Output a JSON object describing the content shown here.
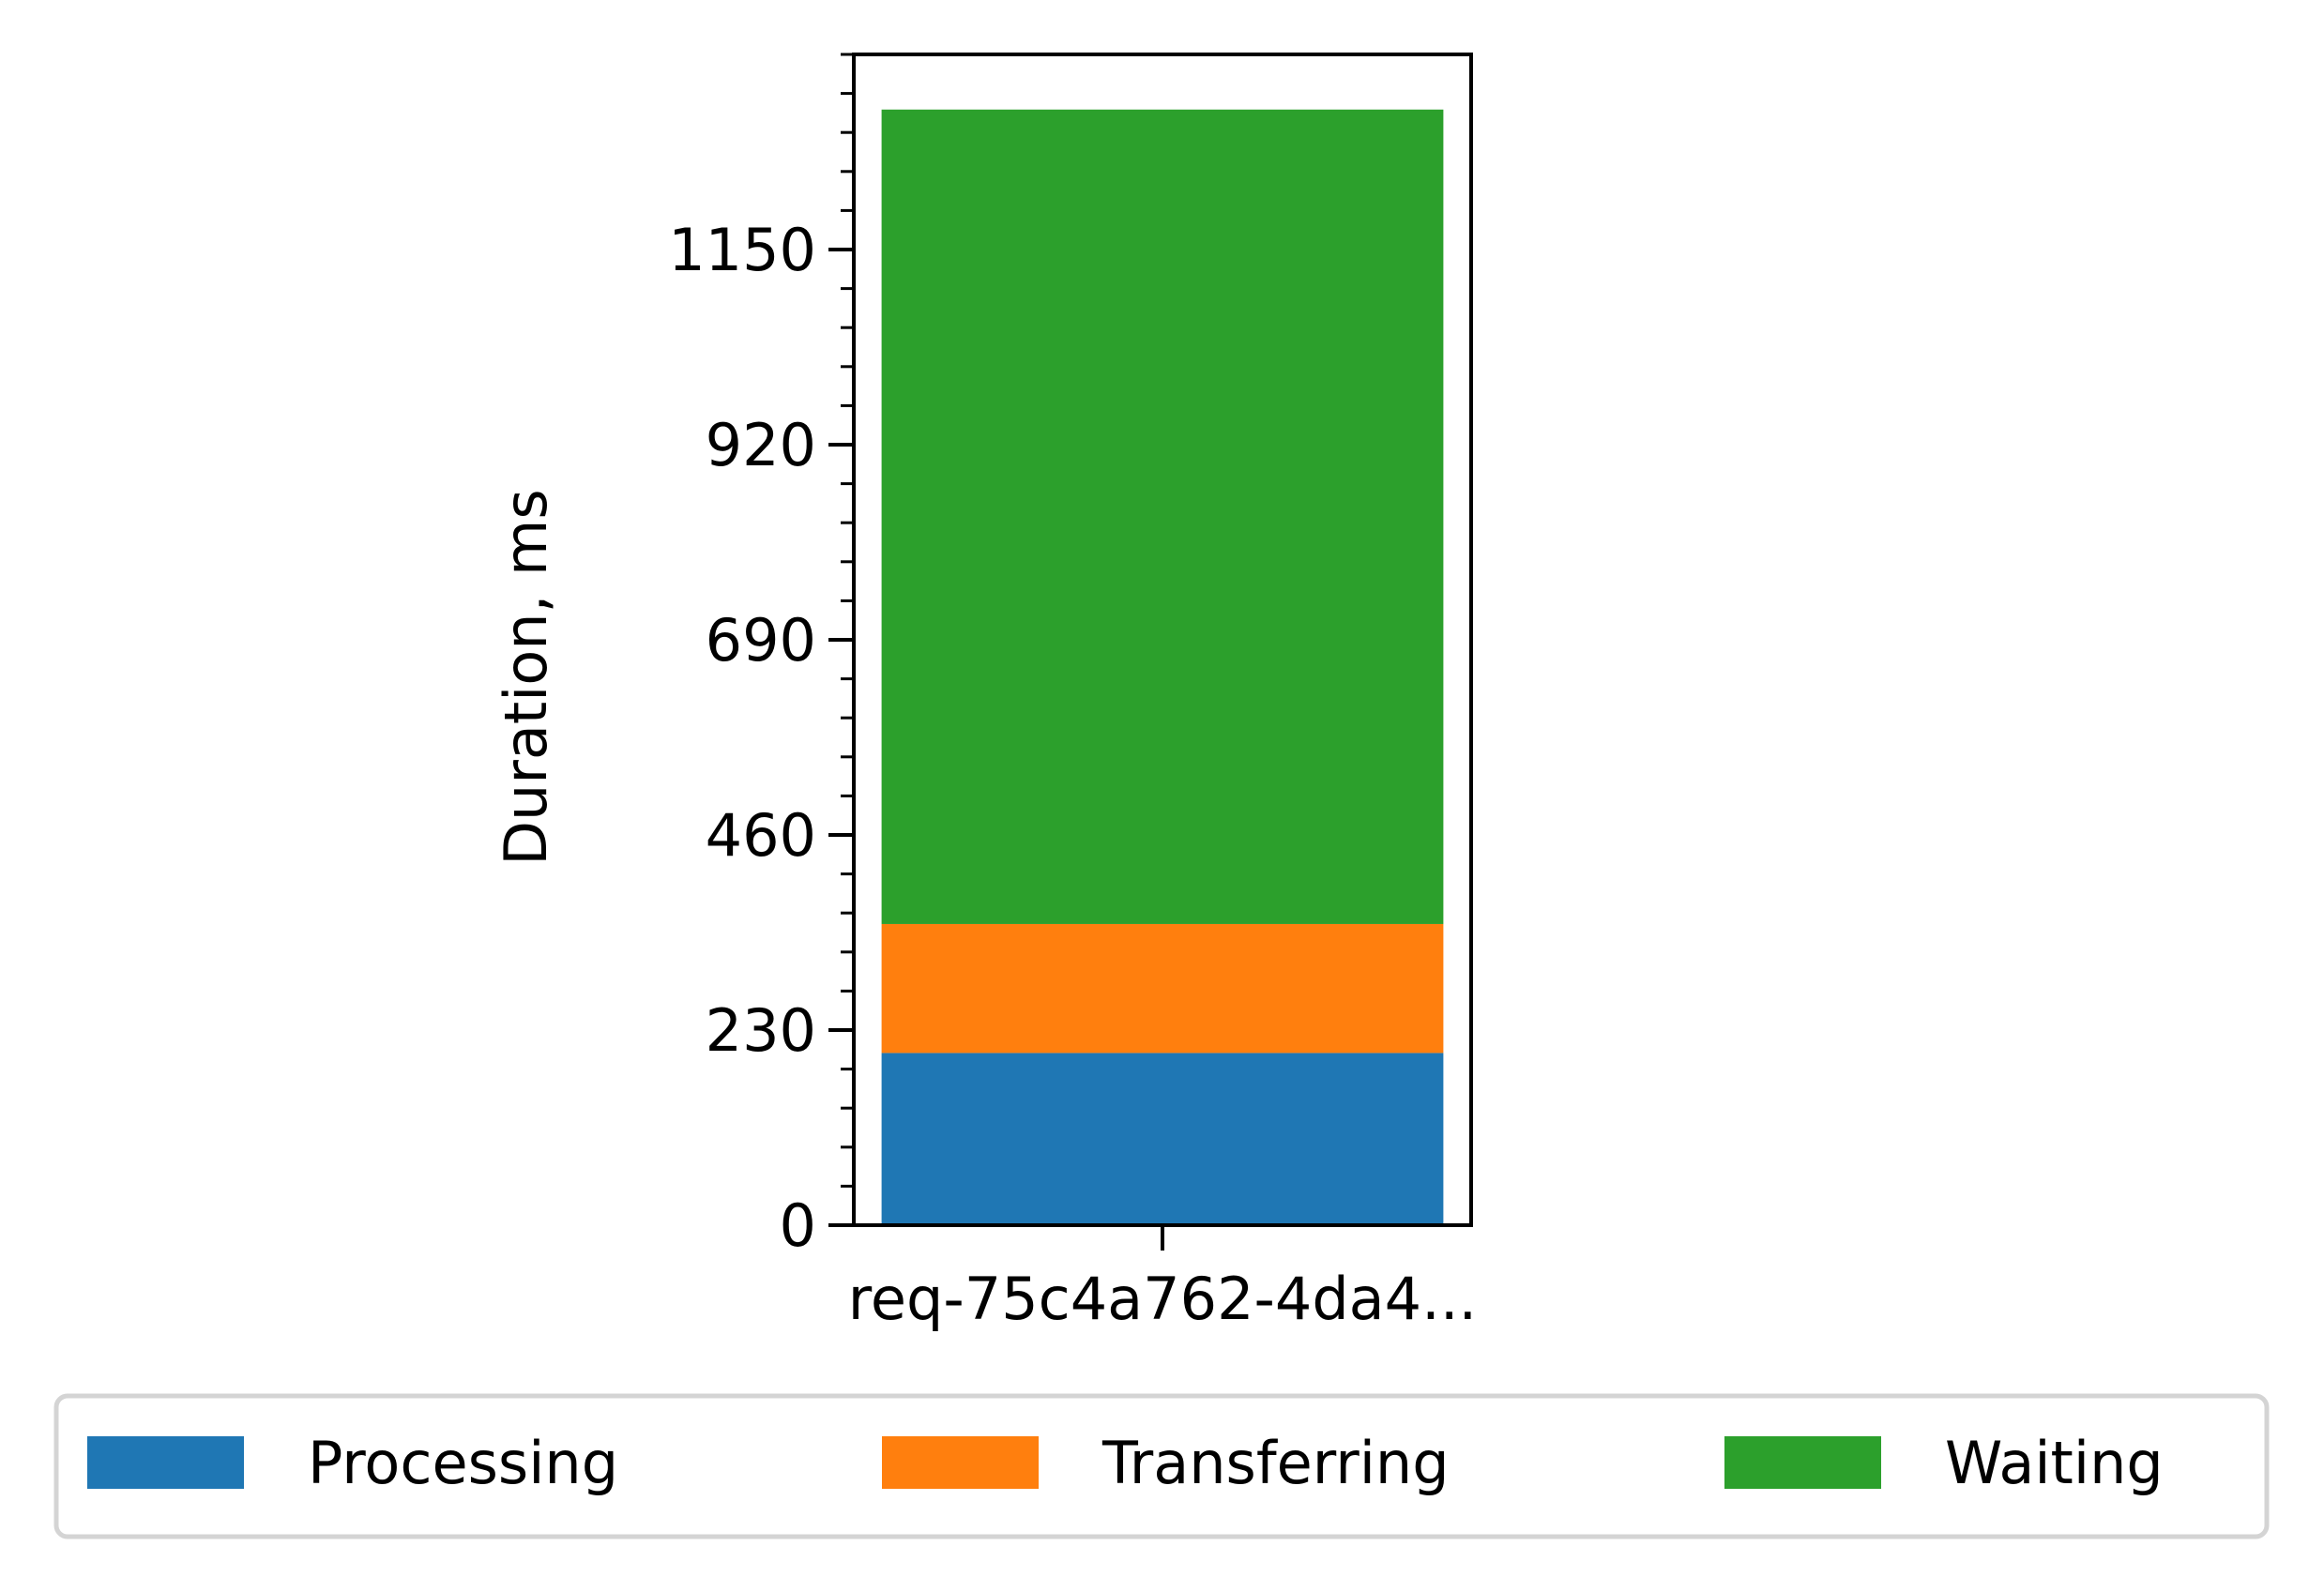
{
  "chart_data": {
    "type": "bar",
    "stacked": true,
    "categories": [
      "req-75c4a762-4da4..."
    ],
    "series": [
      {
        "name": "Processing",
        "color": "#1f77b4",
        "values": [
          203
        ]
      },
      {
        "name": "Transferring",
        "color": "#ff7f0e",
        "values": [
          152
        ]
      },
      {
        "name": "Waiting",
        "color": "#2ca02c",
        "values": [
          960
        ]
      }
    ],
    "xlabel": "",
    "ylabel": "Duration, ms",
    "ylim": [
      0,
      1380
    ],
    "yticks": [
      0,
      230,
      460,
      690,
      920,
      1150
    ],
    "yticks_minor_step": 46,
    "grid": false,
    "legend": {
      "placement": "bottom-center",
      "columns": 3
    }
  }
}
